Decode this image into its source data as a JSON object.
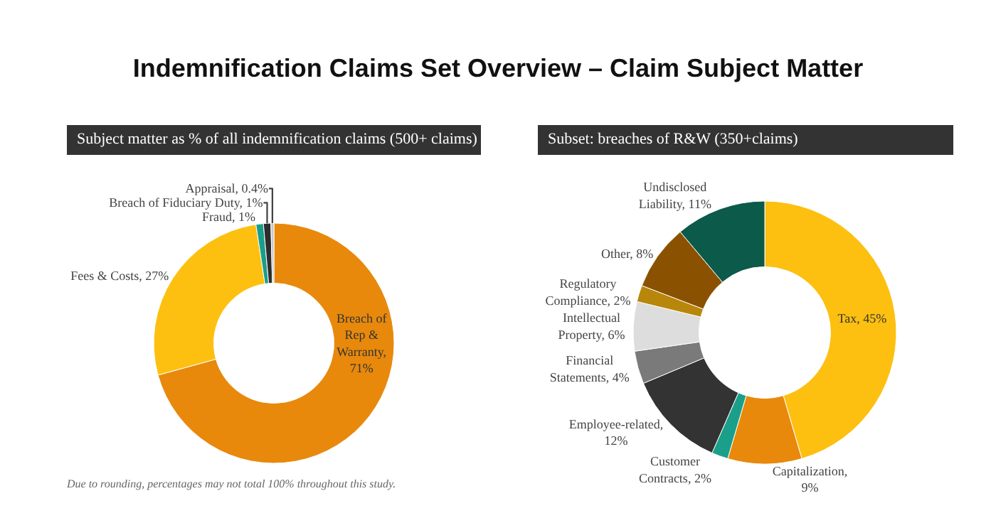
{
  "chart_data": [
    {
      "type": "donut",
      "title": "Indemnification Claims Set Overview – Claim Subject Matter",
      "subtitle": "Subject matter as % of all indemnification claims (500+ claims)",
      "categories": [
        "Breach of Rep & Warranty",
        "Fees & Costs",
        "Fraud",
        "Breach of Fiduciary Duty",
        "Appraisal"
      ],
      "values": [
        71,
        27,
        1,
        1,
        0.4
      ],
      "value_labels": [
        ", 71%",
        ", 27%",
        ", 1%",
        ", 1%",
        ", 0.4%"
      ],
      "colors": [
        "#e8890c",
        "#fdc010",
        "#1a9e8a",
        "#2d2d2d",
        "#c8c8c8"
      ],
      "legend": false,
      "annotations": [
        "Due to rounding, percentages may not total 100% throughout this study."
      ]
    },
    {
      "type": "donut",
      "subtitle": "Subset: breaches of R&W (350+claims)",
      "categories": [
        "Tax",
        "Capitalization",
        "Customer Contracts",
        "Employee-related",
        "Financial Statements",
        "Intellectual Property",
        "Regulatory Compliance",
        "Other",
        "Undisclosed Liability"
      ],
      "values": [
        45,
        9,
        2,
        12,
        4,
        6,
        2,
        8,
        11
      ],
      "value_labels": [
        ", 45%",
        ", 9%",
        ", 2%",
        ", 12%",
        ", 4%",
        ", 6%",
        ", 2%",
        ", 8%",
        ", 11%"
      ],
      "colors": [
        "#fdc010",
        "#e8890c",
        "#1aa08a",
        "#333333",
        "#7a7a7a",
        "#dddddd",
        "#b8860b",
        "#8a5200",
        "#0b5a4a"
      ],
      "legend": false
    }
  ]
}
